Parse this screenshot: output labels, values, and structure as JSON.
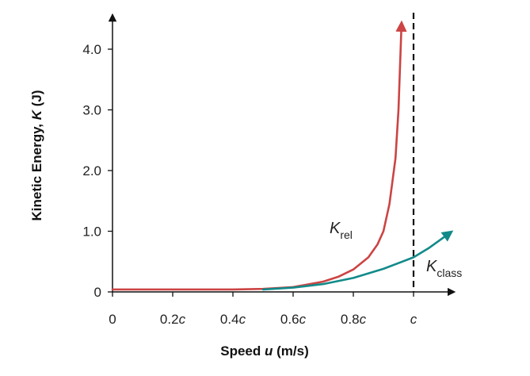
{
  "chart_data": {
    "type": "line",
    "xlabel": {
      "prefix": "Speed ",
      "variable": "u",
      "suffix": " (m/s)"
    },
    "ylabel": {
      "prefix": "Kinetic Energy, ",
      "variable": "K",
      "suffix": " (J)"
    },
    "x_ticks": [
      {
        "value": 0,
        "num": "0",
        "italic": ""
      },
      {
        "value": 0.2,
        "num": "0.2",
        "italic": "c"
      },
      {
        "value": 0.4,
        "num": "0.4",
        "italic": "c"
      },
      {
        "value": 0.6,
        "num": "0.6",
        "italic": "c"
      },
      {
        "value": 0.8,
        "num": "0.8",
        "italic": "c"
      },
      {
        "value": 1.0,
        "num": "",
        "italic": "c"
      }
    ],
    "y_ticks": [
      {
        "value": 0,
        "label": "0"
      },
      {
        "value": 1.0,
        "label": "1.0"
      },
      {
        "value": 2.0,
        "label": "2.0"
      },
      {
        "value": 3.0,
        "label": "3.0"
      },
      {
        "value": 4.0,
        "label": "4.0"
      }
    ],
    "xlim": [
      0,
      1.1
    ],
    "ylim": [
      0,
      4.5
    ],
    "reference_line": {
      "x": 1.0,
      "style": "dashed"
    },
    "series": [
      {
        "name_main": "K",
        "name_sub": "rel",
        "color": "#cc4444",
        "x": [
          0.0,
          0.2,
          0.4,
          0.5,
          0.6,
          0.7,
          0.75,
          0.8,
          0.85,
          0.88,
          0.9,
          0.92,
          0.94,
          0.95,
          0.96
        ],
        "y": [
          0.04,
          0.04,
          0.04,
          0.05,
          0.08,
          0.17,
          0.25,
          0.37,
          0.57,
          0.78,
          1.0,
          1.45,
          2.2,
          3.0,
          4.4
        ]
      },
      {
        "name_main": "K",
        "name_sub": "class",
        "color": "#128a8a",
        "x": [
          0.5,
          0.6,
          0.7,
          0.8,
          0.9,
          1.0,
          1.05,
          1.12
        ],
        "y": [
          0.04,
          0.07,
          0.13,
          0.23,
          0.38,
          0.57,
          0.72,
          0.97
        ]
      }
    ]
  }
}
